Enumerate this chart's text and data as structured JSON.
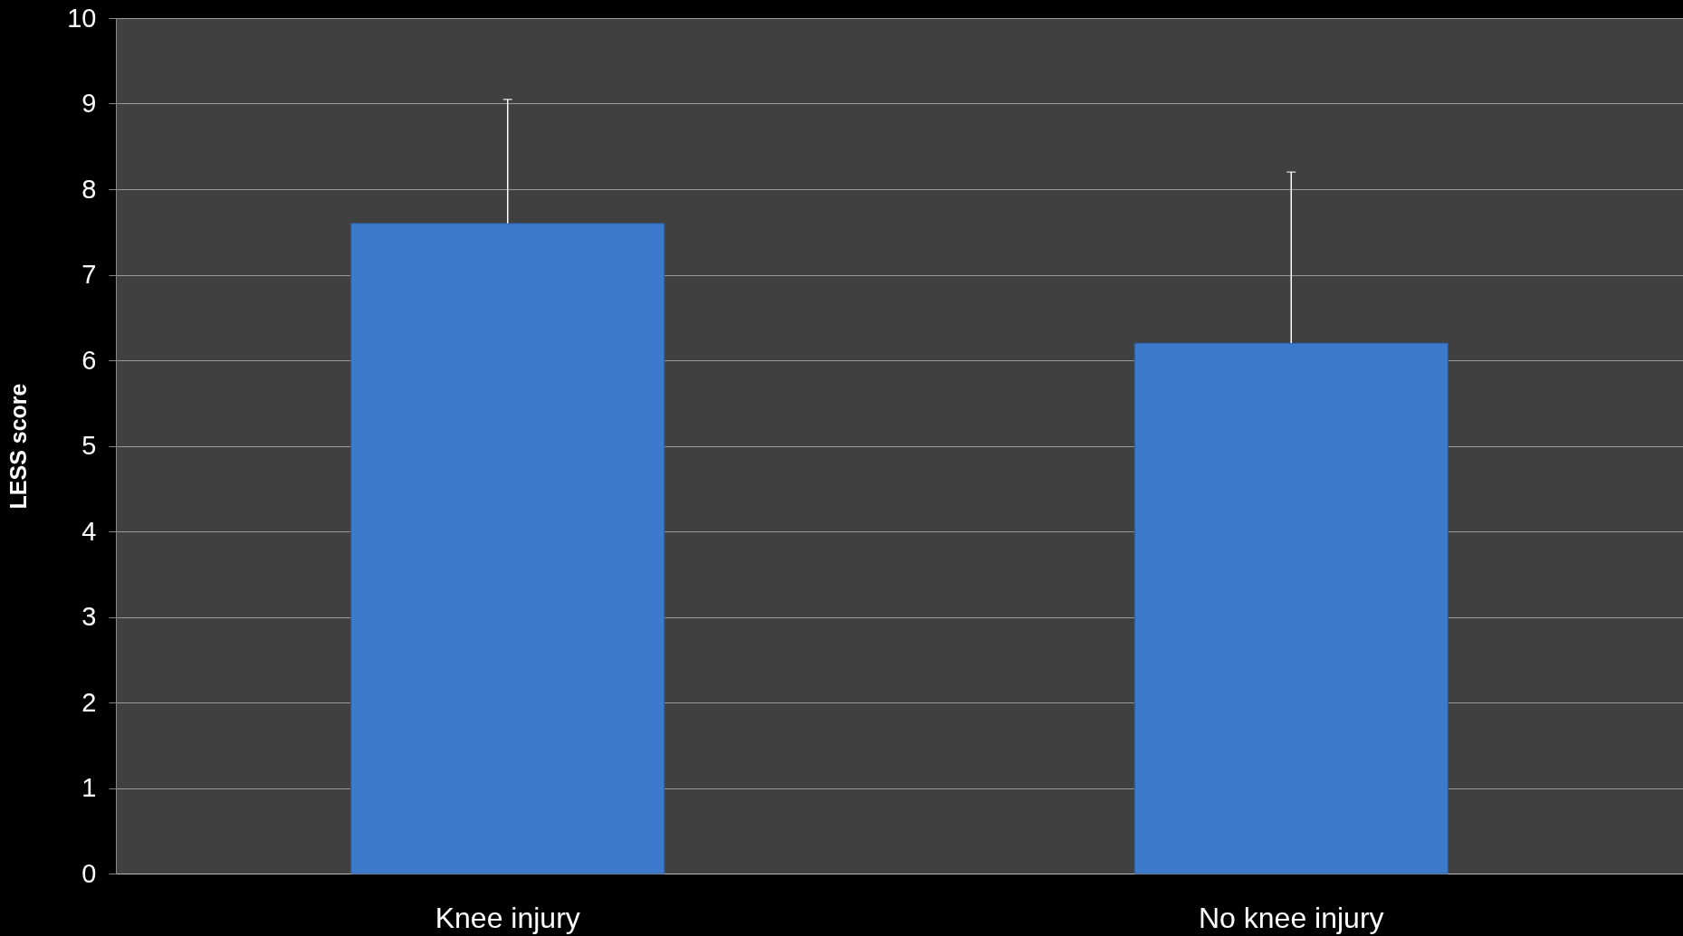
{
  "chart_data": {
    "type": "bar",
    "ylabel": "LESS score",
    "categories": [
      "Knee injury",
      "No knee injury"
    ],
    "values": [
      7.6,
      6.2
    ],
    "errors": [
      [
        7.6,
        9.05
      ],
      [
        6.2,
        8.2
      ]
    ],
    "color": "#3d7acb",
    "ylim": [
      0,
      10
    ],
    "yticks": [
      0,
      1,
      2,
      3,
      4,
      5,
      6,
      7,
      8,
      9,
      10
    ],
    "grid": "y"
  }
}
